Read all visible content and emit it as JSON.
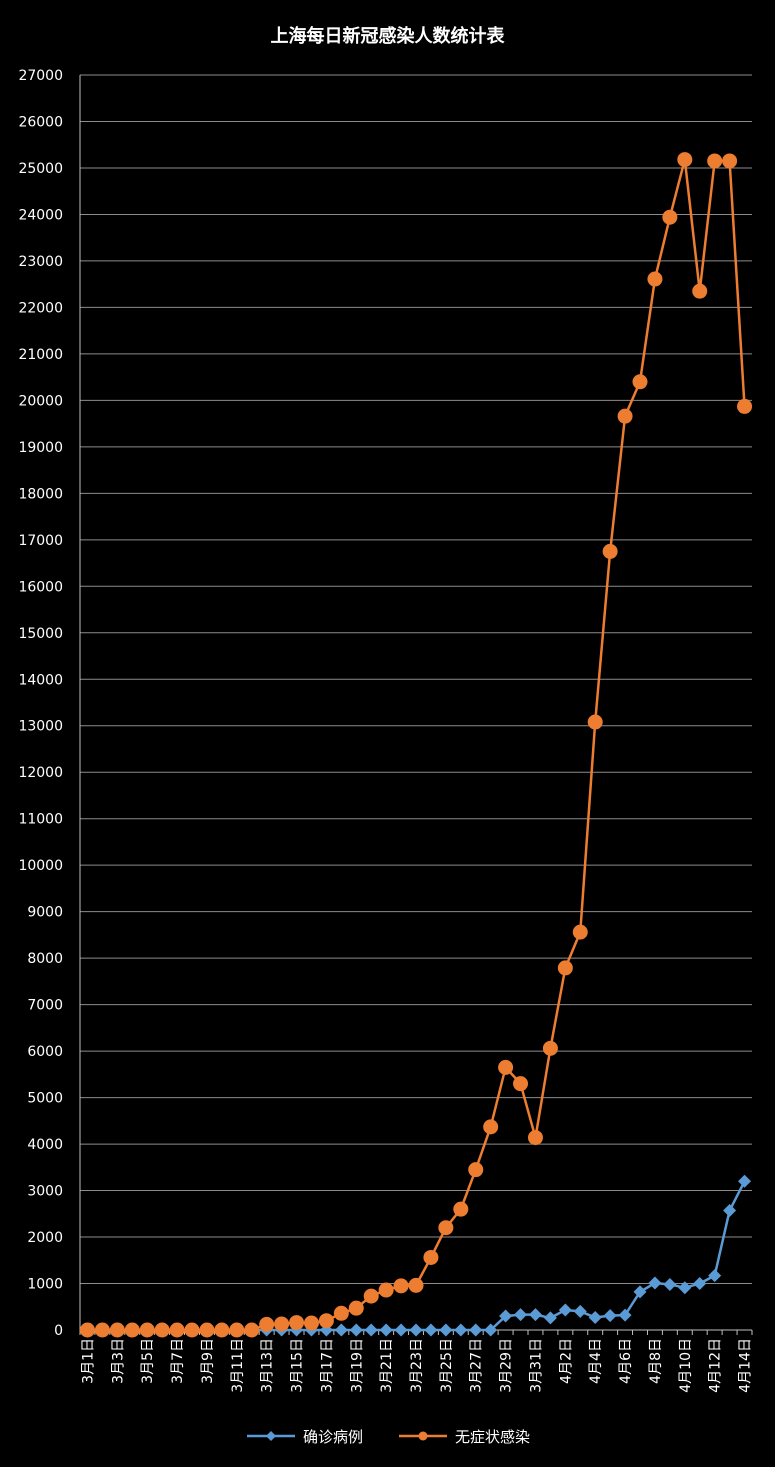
{
  "chart_data": {
    "type": "line",
    "title": "上海每日新冠感染人数统计表",
    "xlabel": "",
    "ylabel": "",
    "ylim": [
      0,
      27000
    ],
    "yticks": [
      0,
      1000,
      2000,
      3000,
      4000,
      5000,
      6000,
      7000,
      8000,
      9000,
      10000,
      11000,
      12000,
      13000,
      14000,
      15000,
      16000,
      17000,
      18000,
      19000,
      20000,
      21000,
      22000,
      23000,
      24000,
      25000,
      26000,
      27000
    ],
    "grid": true,
    "legend_position": "bottom",
    "categories": [
      "3月1日",
      "3月2日",
      "3月3日",
      "3月4日",
      "3月5日",
      "3月6日",
      "3月7日",
      "3月8日",
      "3月9日",
      "3月10日",
      "3月11日",
      "3月12日",
      "3月13日",
      "3月14日",
      "3月15日",
      "3月16日",
      "3月17日",
      "3月18日",
      "3月19日",
      "3月20日",
      "3月21日",
      "3月22日",
      "3月23日",
      "3月24日",
      "3月25日",
      "3月26日",
      "3月27日",
      "3月28日",
      "3月29日",
      "3月30日",
      "3月31日",
      "4月1日",
      "4月2日",
      "4月3日",
      "4月4日",
      "4月5日",
      "4月6日",
      "4月7日",
      "4月8日",
      "4月9日",
      "4月10日",
      "4月11日",
      "4月12日",
      "4月13日",
      "4月14日"
    ],
    "tick_labels": [
      "3月1日",
      "3月3日",
      "3月5日",
      "3月7日",
      "3月9日",
      "3月11日",
      "3月13日",
      "3月15日",
      "3月17日",
      "3月19日",
      "3月21日",
      "3月23日",
      "3月25日",
      "3月27日",
      "3月29日",
      "3月31日",
      "4月2日",
      "4月4日",
      "4月6日",
      "4月8日",
      "4月10日",
      "4月12日",
      "4月14日"
    ],
    "series": [
      {
        "name": "确诊病例",
        "color": "#5b9bd5",
        "marker": "diamond",
        "values": [
          0,
          0,
          0,
          0,
          0,
          0,
          0,
          0,
          0,
          0,
          0,
          0,
          0,
          0,
          0,
          0,
          0,
          0,
          0,
          0,
          0,
          0,
          0,
          0,
          0,
          0,
          0,
          0,
          300,
          330,
          330,
          260,
          430,
          400,
          270,
          310,
          320,
          820,
          1010,
          980,
          910,
          1000,
          1170,
          2570,
          3200
        ]
      },
      {
        "name": "无症状感染",
        "color": "#ed7d31",
        "marker": "circle",
        "values": [
          0,
          0,
          0,
          0,
          0,
          0,
          0,
          0,
          0,
          0,
          0,
          0,
          120,
          130,
          160,
          150,
          200,
          360,
          470,
          730,
          860,
          950,
          960,
          1560,
          2200,
          2600,
          3450,
          4370,
          5650,
          5300,
          4140,
          6060,
          7790,
          8560,
          13080,
          16750,
          19660,
          20400,
          22610,
          23940,
          25180,
          22350,
          25150,
          25150,
          19870
        ]
      }
    ]
  }
}
